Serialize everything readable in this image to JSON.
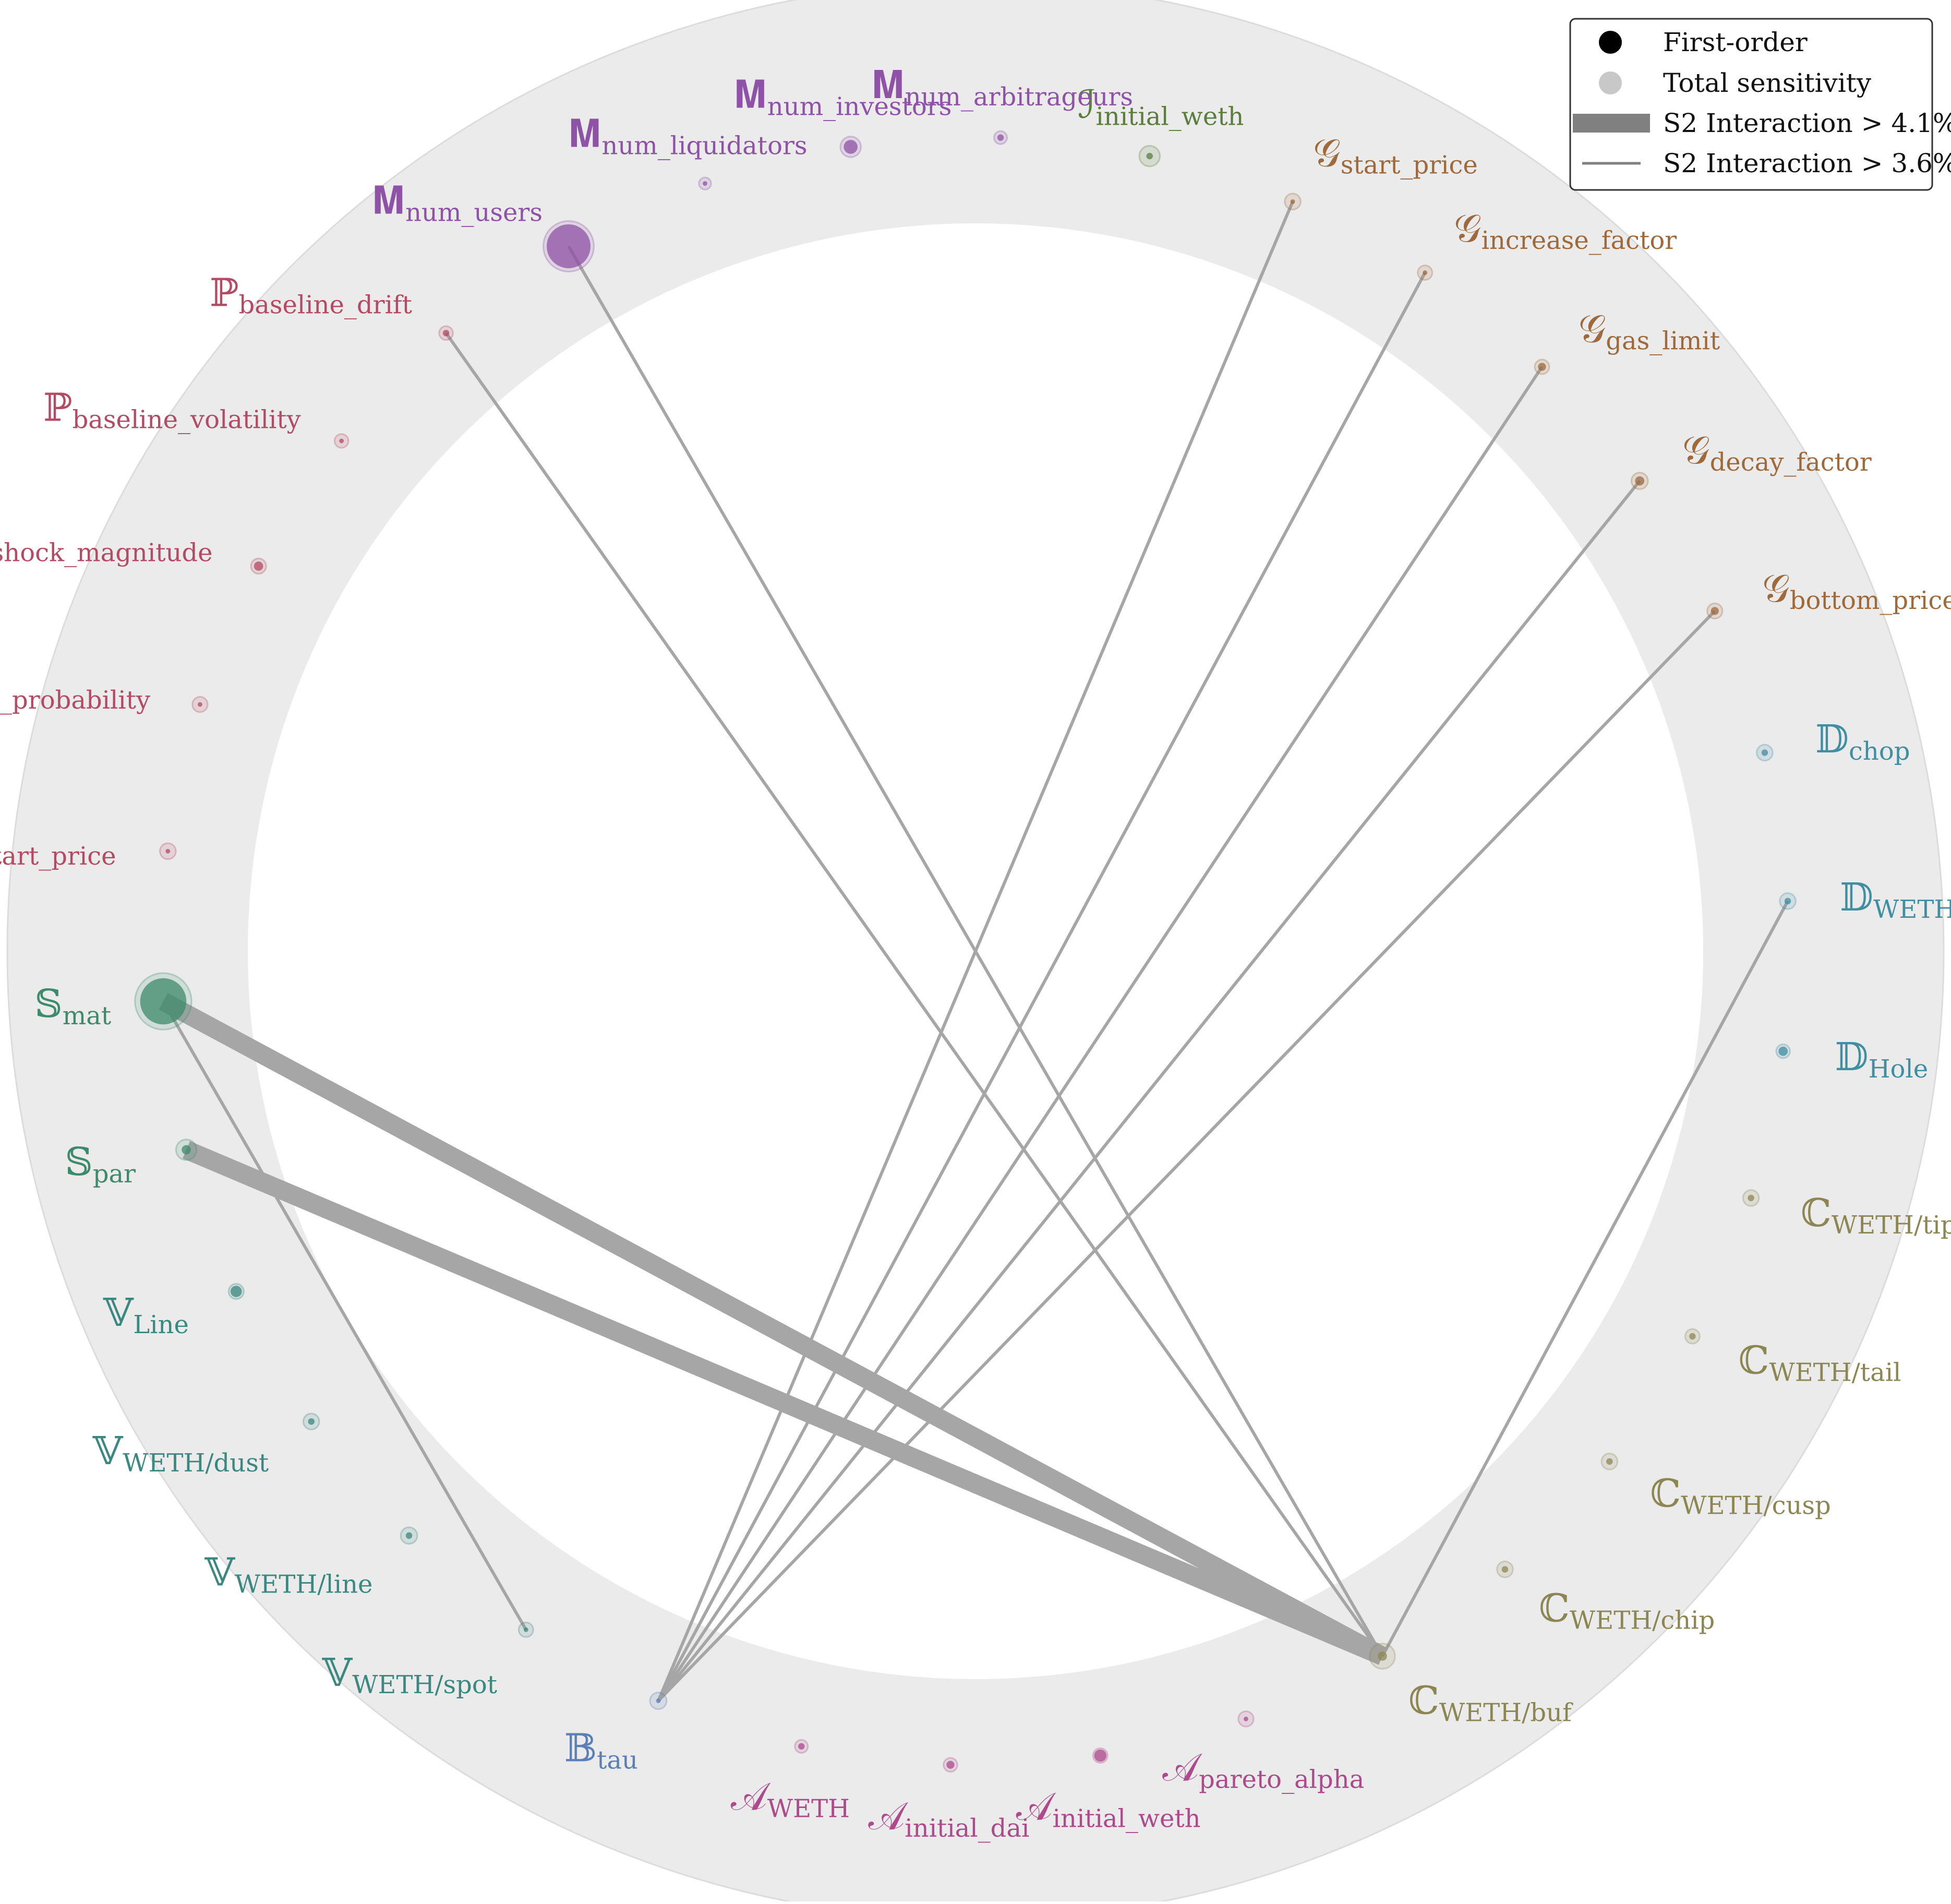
{
  "legend": {
    "first_order": "First-order",
    "total_sensitivity": "Total sensitivity",
    "s2_strong": "S2 Interaction > 4.1%",
    "s2_weak": "S2 Interaction > 3.6%"
  },
  "colors": {
    "ring": "#ebebeb",
    "edge": "#a6a6a6",
    "C": "#8c8752",
    "D": "#3f8ea1",
    "G": "#9e6a3c",
    "I": "#5b7d3e",
    "M": "#8e52a6",
    "P": "#b44a63",
    "S": "#3d8a6c",
    "V": "#3b8880",
    "B": "#5b7fb6",
    "A": "#ac4a8c"
  },
  "nodes": [
    {
      "id": "C_buf",
      "group": "C",
      "symbol": "ℂ",
      "sub": "WETH/buf",
      "first": 0.004,
      "total": 0.03
    },
    {
      "id": "C_chip",
      "group": "C",
      "symbol": "ℂ",
      "sub": "WETH/chip",
      "first": 0.002,
      "total": 0.012
    },
    {
      "id": "C_cusp",
      "group": "C",
      "symbol": "ℂ",
      "sub": "WETH/cusp",
      "first": 0.002,
      "total": 0.012
    },
    {
      "id": "C_tail",
      "group": "C",
      "symbol": "ℂ",
      "sub": "WETH/tail",
      "first": 0.002,
      "total": 0.01
    },
    {
      "id": "C_tip",
      "group": "C",
      "symbol": "ℂ",
      "sub": "WETH/tip",
      "first": 0.002,
      "total": 0.012
    },
    {
      "id": "D_Hole",
      "group": "D",
      "symbol": "𝔻",
      "sub": "Hole",
      "first": 0.004,
      "total": 0.009
    },
    {
      "id": "D_hole",
      "group": "D",
      "symbol": "𝔻",
      "sub": "WETH/hole",
      "first": 0.002,
      "total": 0.012
    },
    {
      "id": "D_chop",
      "group": "D",
      "symbol": "𝔻",
      "sub": "chop",
      "first": 0.002,
      "total": 0.012
    },
    {
      "id": "G_bottom",
      "group": "G",
      "symbol": "𝒢",
      "sub": "bottom_price",
      "first": 0.003,
      "total": 0.011
    },
    {
      "id": "G_decay",
      "group": "G",
      "symbol": "𝒢",
      "sub": "decay_factor",
      "first": 0.004,
      "total": 0.013
    },
    {
      "id": "G_gas",
      "group": "G",
      "symbol": "𝒢",
      "sub": "gas_limit",
      "first": 0.003,
      "total": 0.01
    },
    {
      "id": "G_increase",
      "group": "G",
      "symbol": "𝒢",
      "sub": "increase_factor",
      "first": 0.001,
      "total": 0.01
    },
    {
      "id": "G_start",
      "group": "G",
      "symbol": "𝒢",
      "sub": "start_price",
      "first": 0.001,
      "total": 0.012
    },
    {
      "id": "I_weth",
      "group": "I",
      "symbol": "ℐ",
      "sub": "initial_weth",
      "first": 0.002,
      "total": 0.02
    },
    {
      "id": "M_arb",
      "group": "M",
      "symbol": "𝐌",
      "sub": "num_arbitrageurs",
      "first": 0.002,
      "total": 0.008
    },
    {
      "id": "M_inv",
      "group": "M",
      "symbol": "𝐌",
      "sub": "num_investors",
      "first": 0.009,
      "total": 0.02
    },
    {
      "id": "M_liq",
      "group": "M",
      "symbol": "𝐌",
      "sub": "num_liquidators",
      "first": 0.001,
      "total": 0.007
    },
    {
      "id": "M_users",
      "group": "M",
      "symbol": "𝐌",
      "sub": "num_users",
      "first": 0.09,
      "total": 0.12
    },
    {
      "id": "P_drift",
      "group": "P",
      "symbol": "ℙ",
      "sub": "baseline_drift",
      "first": 0.002,
      "total": 0.009
    },
    {
      "id": "P_vol",
      "group": "P",
      "symbol": "ℙ",
      "sub": "baseline_volatility",
      "first": 0.001,
      "total": 0.009
    },
    {
      "id": "P_mag",
      "group": "P",
      "symbol": "ℙ",
      "sub": "shock_magnitude",
      "first": 0.004,
      "total": 0.011
    },
    {
      "id": "P_prob",
      "group": "P",
      "symbol": "ℙ",
      "sub": "shock_probability",
      "first": 0.001,
      "total": 0.011
    },
    {
      "id": "P_start",
      "group": "P",
      "symbol": "ℙ",
      "sub": "start_price",
      "first": 0.001,
      "total": 0.012
    },
    {
      "id": "S_mat",
      "group": "S",
      "symbol": "𝕊",
      "sub": "mat",
      "first": 0.1,
      "total": 0.15
    },
    {
      "id": "S_par",
      "group": "S",
      "symbol": "𝕊",
      "sub": "par",
      "first": 0.004,
      "total": 0.02
    },
    {
      "id": "V_Line",
      "group": "V",
      "symbol": "𝕍",
      "sub": "Line",
      "first": 0.006,
      "total": 0.011
    },
    {
      "id": "V_dust",
      "group": "V",
      "symbol": "𝕍",
      "sub": "WETH/dust",
      "first": 0.002,
      "total": 0.012
    },
    {
      "id": "V_line",
      "group": "V",
      "symbol": "𝕍",
      "sub": "WETH/line",
      "first": 0.002,
      "total": 0.013
    },
    {
      "id": "V_spot",
      "group": "V",
      "symbol": "𝕍",
      "sub": "WETH/spot",
      "first": 0.001,
      "total": 0.01
    },
    {
      "id": "B_tau",
      "group": "B",
      "symbol": "𝔹",
      "sub": "tau",
      "first": 0.001,
      "total": 0.013
    },
    {
      "id": "A_WETH",
      "group": "A",
      "symbol": "𝒜",
      "sub": "WETH",
      "first": 0.002,
      "total": 0.008
    },
    {
      "id": "A_dai",
      "group": "A",
      "symbol": "𝒜",
      "sub": "initial_dai",
      "first": 0.003,
      "total": 0.009
    },
    {
      "id": "A_weth",
      "group": "A",
      "symbol": "𝒜",
      "sub": "initial_weth",
      "first": 0.007,
      "total": 0.01
    },
    {
      "id": "A_pareto",
      "group": "A",
      "symbol": "𝒜",
      "sub": "pareto_alpha",
      "first": 0.001,
      "total": 0.011
    }
  ],
  "edges": [
    {
      "from": "C_buf",
      "to": "S_mat",
      "s2": 0.043,
      "strong": true
    },
    {
      "from": "C_buf",
      "to": "S_par",
      "s2": 0.042,
      "strong": true
    },
    {
      "from": "C_buf",
      "to": "D_hole",
      "s2": 0.037,
      "strong": false
    },
    {
      "from": "C_buf",
      "to": "M_users",
      "s2": 0.037,
      "strong": false
    },
    {
      "from": "C_buf",
      "to": "P_drift",
      "s2": 0.037,
      "strong": false
    },
    {
      "from": "B_tau",
      "to": "G_bottom",
      "s2": 0.037,
      "strong": false
    },
    {
      "from": "B_tau",
      "to": "G_decay",
      "s2": 0.037,
      "strong": false
    },
    {
      "from": "B_tau",
      "to": "G_gas",
      "s2": 0.037,
      "strong": false
    },
    {
      "from": "B_tau",
      "to": "G_increase",
      "s2": 0.037,
      "strong": false
    },
    {
      "from": "B_tau",
      "to": "G_start",
      "s2": 0.037,
      "strong": false
    },
    {
      "from": "S_mat",
      "to": "V_spot",
      "s2": 0.037,
      "strong": false
    }
  ]
}
